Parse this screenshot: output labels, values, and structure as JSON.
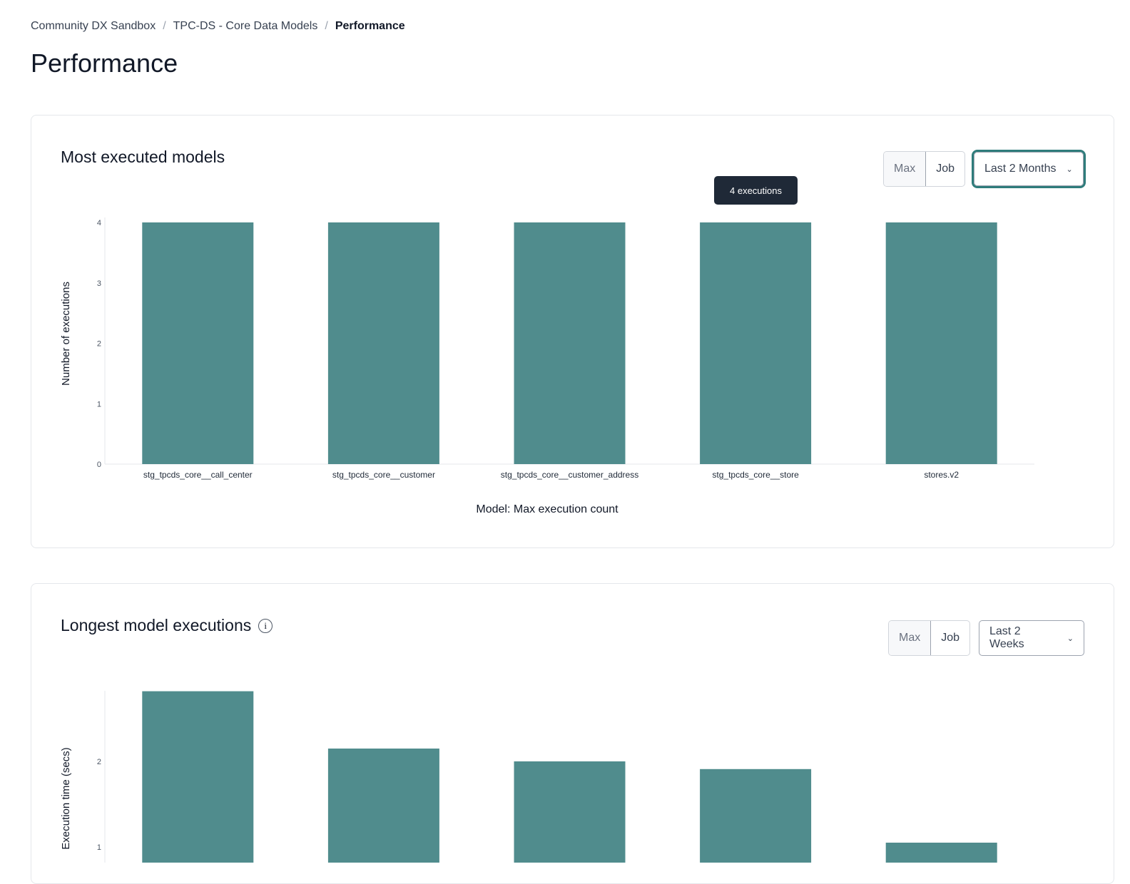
{
  "breadcrumb": [
    "Community DX Sandbox",
    "TPC-DS - Core Data Models",
    "Performance"
  ],
  "page_title": "Performance",
  "accent": "#508c8d",
  "cards": [
    {
      "title": "Most executed models",
      "toggle": [
        "Max",
        "Job"
      ],
      "range": "Last 2 Months",
      "tooltip": "4 executions"
    },
    {
      "title": "Longest model executions",
      "info_icon": "info-icon",
      "toggle": [
        "Max",
        "Job"
      ],
      "range": "Last 2 Weeks"
    }
  ],
  "chart_data": [
    {
      "type": "bar",
      "title": "",
      "xlabel": "Model: Max execution count",
      "ylabel": "Number of executions",
      "categories": [
        "stg_tpcds_core__call_center",
        "stg_tpcds_core__customer",
        "stg_tpcds_core__customer_address",
        "stg_tpcds_core__store",
        "stores.v2"
      ],
      "values": [
        4,
        4,
        4,
        4,
        4
      ],
      "yticks": [
        0,
        1,
        2,
        3,
        4
      ],
      "ylim": [
        0,
        4
      ],
      "grid": false
    },
    {
      "type": "bar",
      "title": "",
      "ylabel": "Execution time (secs)",
      "values": [
        2.82,
        2.15,
        2.0,
        1.91,
        1.05
      ],
      "yticks": [
        1,
        2
      ],
      "grid": false
    }
  ]
}
